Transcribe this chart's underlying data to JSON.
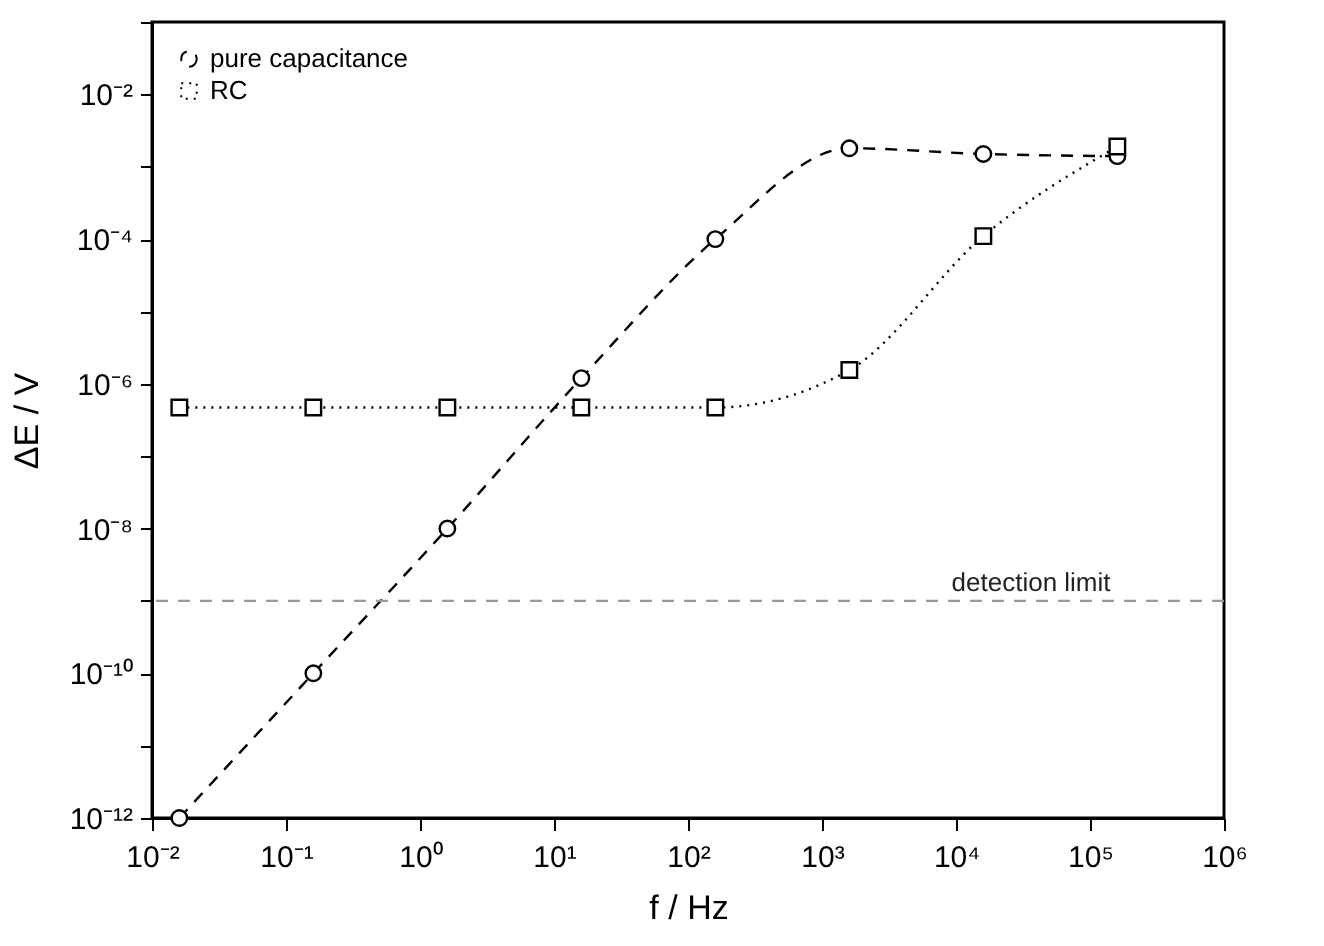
{
  "chart_data": {
    "type": "line",
    "xlabel": "f / Hz",
    "ylabel": "ΔE / V",
    "log": "xy",
    "grid": false,
    "legend": "top left",
    "xlim": [
      0.01,
      1000000
    ],
    "ylim": [
      1e-12,
      0.1
    ],
    "xticks": [
      {
        "value": 0.01,
        "label": "10⁻²"
      },
      {
        "value": 0.1,
        "label": "10⁻¹"
      },
      {
        "value": 1,
        "label": "10⁰"
      },
      {
        "value": 10,
        "label": "10¹"
      },
      {
        "value": 100,
        "label": "10²"
      },
      {
        "value": 1000,
        "label": "10³"
      },
      {
        "value": 10000,
        "label": "10⁴"
      },
      {
        "value": 100000,
        "label": "10⁵"
      },
      {
        "value": 1000000,
        "label": "10⁶"
      }
    ],
    "yticks": [
      {
        "value": 1e-12,
        "label": "10⁻¹²"
      },
      {
        "value": 1e-11,
        "label": null
      },
      {
        "value": 1e-10,
        "label": "10⁻¹⁰"
      },
      {
        "value": 1e-09,
        "label": null
      },
      {
        "value": 1e-08,
        "label": "10⁻⁸"
      },
      {
        "value": 1e-07,
        "label": null
      },
      {
        "value": 1e-06,
        "label": "10⁻⁶"
      },
      {
        "value": 1e-05,
        "label": null
      },
      {
        "value": 0.0001,
        "label": "10⁻⁴"
      },
      {
        "value": 0.001,
        "label": null
      },
      {
        "value": 0.01,
        "label": "10⁻²"
      },
      {
        "value": 0.1,
        "label": null
      }
    ],
    "x": [
      0.016,
      0.16,
      1.6,
      16,
      160,
      1600,
      16000,
      160000
    ],
    "series": [
      {
        "name": "pure capacitance",
        "color": "#000000",
        "marker": "circle",
        "line_style": "dashed",
        "values": [
          1e-12,
          1e-10,
          1e-08,
          1.2e-06,
          0.0001,
          0.0018,
          0.0015,
          0.0014
        ]
      },
      {
        "name": "RC",
        "color": "#000000",
        "marker": "square",
        "line_style": "dotted",
        "values": [
          4.7e-07,
          4.7e-07,
          4.7e-07,
          4.7e-07,
          4.7e-07,
          1.55e-06,
          0.00011,
          0.0019
        ]
      }
    ],
    "ref_lines": [
      {
        "axis": "y",
        "value": 1e-09,
        "label": "detection limit",
        "color": "#999999",
        "line_style": "dashed"
      }
    ]
  }
}
